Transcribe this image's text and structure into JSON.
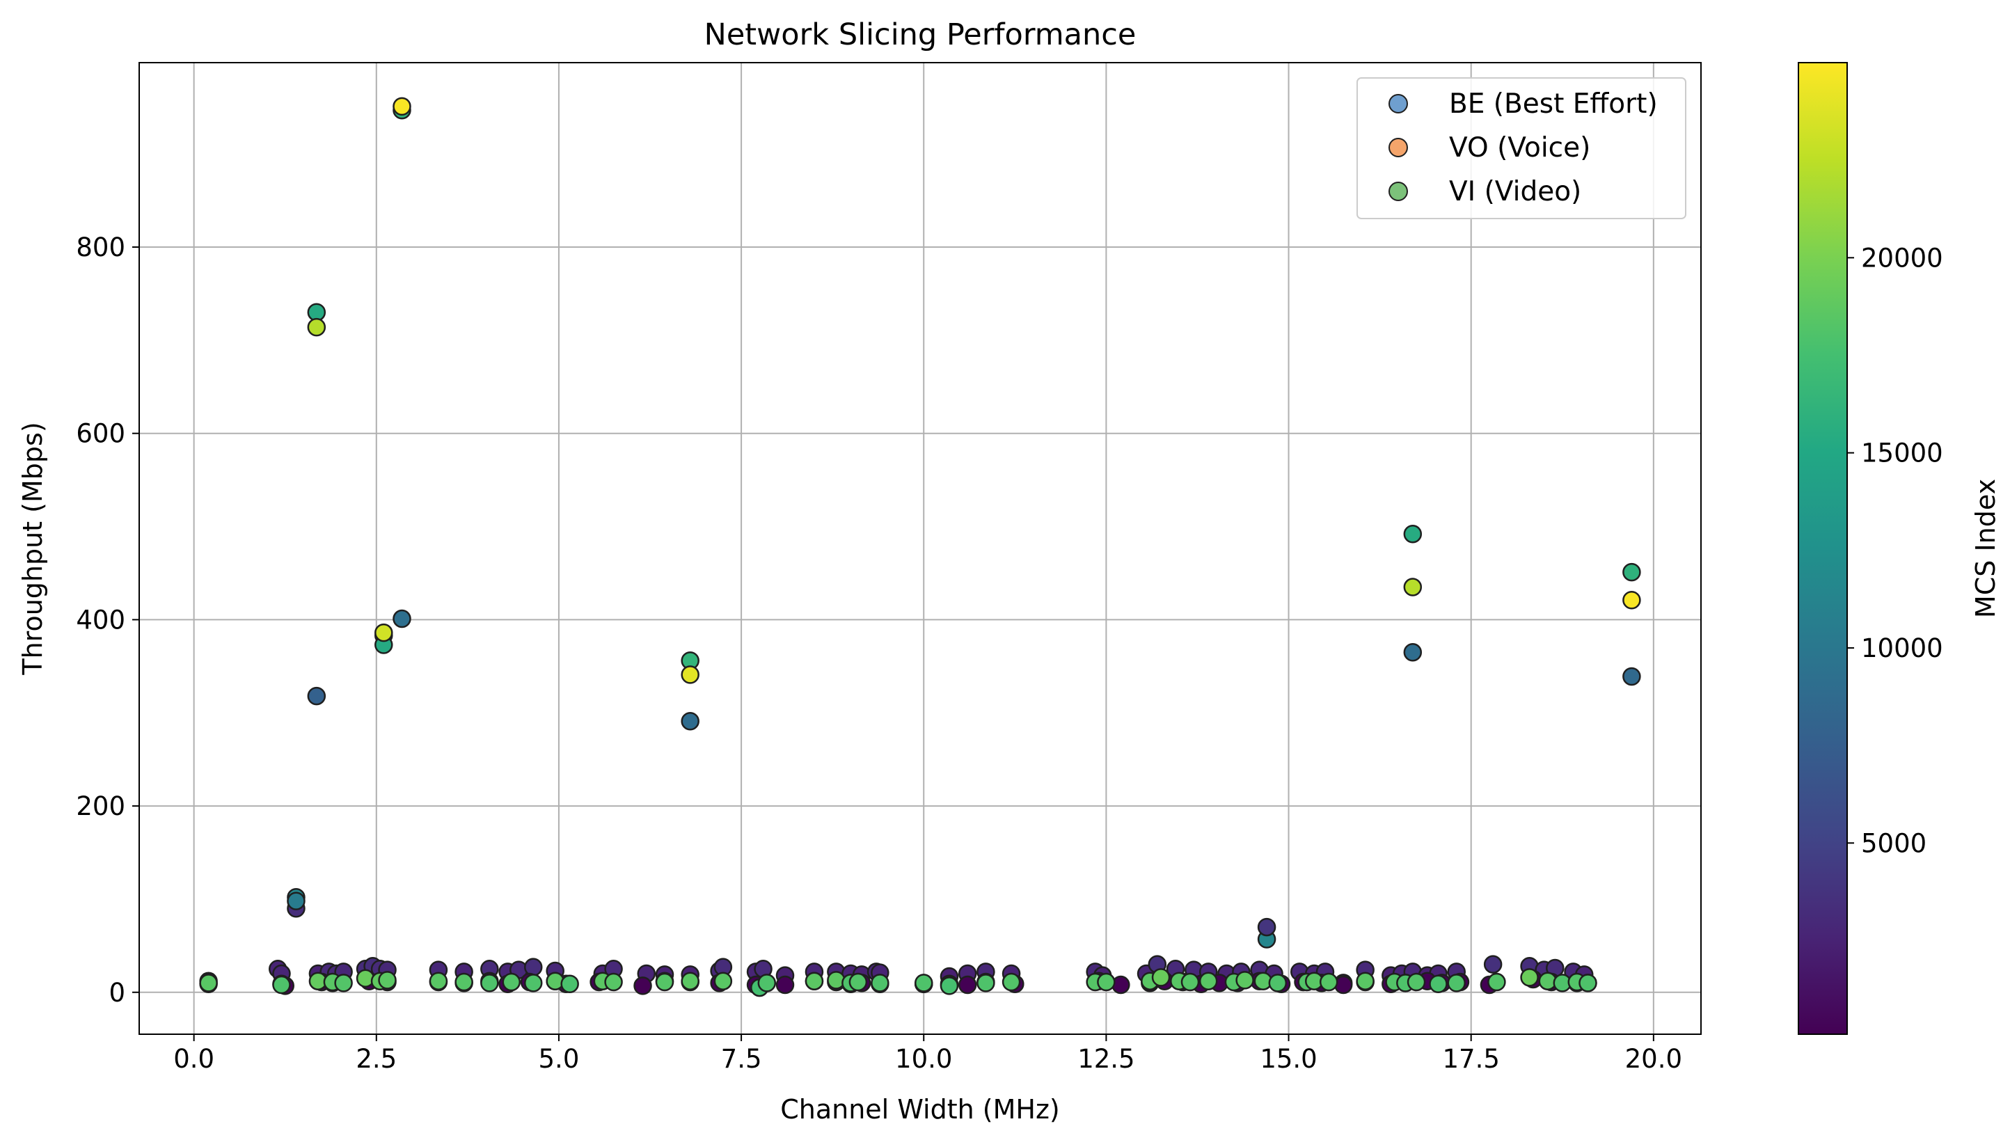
{
  "chart_data": {
    "type": "scatter",
    "title": "Network Slicing Performance",
    "xlabel": "Channel Width (MHz)",
    "ylabel": "Throughput (Mbps)",
    "xlim": [
      -0.75,
      20.65
    ],
    "ylim": [
      -45,
      998
    ],
    "xticks": [
      0.0,
      2.5,
      5.0,
      7.5,
      10.0,
      12.5,
      15.0,
      17.5,
      20.0
    ],
    "xtick_labels": [
      "0.0",
      "2.5",
      "5.0",
      "7.5",
      "10.0",
      "12.5",
      "15.0",
      "17.5",
      "20.0"
    ],
    "yticks": [
      0,
      200,
      400,
      600,
      800
    ],
    "ytick_labels": [
      "0",
      "200",
      "400",
      "600",
      "800"
    ],
    "grid": true,
    "legend_position": "top-right",
    "colorbar": {
      "label": "MCS Index",
      "colormap": "viridis",
      "range": [
        100,
        25000
      ],
      "ticks": [
        5000,
        10000,
        15000,
        20000
      ],
      "tick_labels": [
        "5000",
        "10000",
        "15000",
        "20000"
      ]
    },
    "colors": {
      "edge": "#1f1f1f"
    },
    "series": [
      {
        "name": "BE (Best Effort)",
        "legend_color": "#6f9fcf",
        "x": [
          0.2,
          1.15,
          1.2,
          1.4,
          1.7,
          1.85,
          1.95,
          2.05,
          2.35,
          2.45,
          2.55,
          2.65,
          3.35,
          3.7,
          4.05,
          4.3,
          4.45,
          4.65,
          4.95,
          5.6,
          5.75,
          6.2,
          6.45,
          6.8,
          7.2,
          7.25,
          7.7,
          7.8,
          8.1,
          8.5,
          8.8,
          9.0,
          9.15,
          9.35,
          9.4,
          10.0,
          10.35,
          10.6,
          10.85,
          11.2,
          12.35,
          12.45,
          13.05,
          13.2,
          13.45,
          13.7,
          13.9,
          14.15,
          14.35,
          14.6,
          14.8,
          15.15,
          15.35,
          15.5,
          15.75,
          16.05,
          16.4,
          16.55,
          16.7,
          16.9,
          17.05,
          17.3,
          17.8,
          18.3,
          18.5,
          18.65,
          18.9,
          19.05,
          1.4,
          1.68,
          2.6,
          2.85,
          6.8,
          14.7,
          16.7,
          19.7,
          1.68,
          2.6,
          2.85,
          6.8,
          16.7,
          19.7,
          14.7,
          1.4
        ],
        "y": [
          12,
          25,
          20,
          90,
          20,
          22,
          20,
          22,
          25,
          28,
          25,
          24,
          24,
          22,
          25,
          22,
          24,
          27,
          23,
          20,
          25,
          20,
          19,
          19,
          23,
          27,
          22,
          25,
          18,
          22,
          22,
          20,
          19,
          22,
          21,
          9,
          17,
          20,
          22,
          20,
          22,
          18,
          20,
          30,
          25,
          24,
          22,
          20,
          22,
          24,
          20,
          22,
          20,
          22,
          10,
          24,
          18,
          20,
          22,
          18,
          20,
          22,
          30,
          28,
          24,
          26,
          22,
          19,
          102,
          318,
          383,
          401,
          291,
          57,
          365,
          339,
          730,
          373,
          947,
          356,
          492,
          451,
          70,
          98
        ],
        "c": [
          1900,
          2600,
          2700,
          3300,
          2400,
          3000,
          2900,
          2800,
          3200,
          3400,
          3100,
          2900,
          2800,
          2600,
          3100,
          2700,
          3000,
          3300,
          2800,
          2500,
          3000,
          2600,
          2400,
          2400,
          2800,
          3200,
          2700,
          3100,
          2300,
          2700,
          2700,
          2600,
          2400,
          2700,
          2600,
          1700,
          2300,
          2500,
          2800,
          2500,
          2800,
          2300,
          2600,
          3500,
          3000,
          3000,
          2800,
          2600,
          2800,
          3000,
          2600,
          2800,
          2600,
          2800,
          1600,
          3000,
          2400,
          2600,
          2800,
          2300,
          2600,
          2800,
          3500,
          3400,
          3000,
          3200,
          2800,
          2500,
          11500,
          7800,
          20500,
          9200,
          8900,
          11500,
          9000,
          8600,
          15300,
          15300,
          16200,
          16300,
          15400,
          16000,
          3900,
          10500
        ]
      },
      {
        "name": "VO (Voice)",
        "legend_color": "#f5a56b",
        "x": [
          0.2,
          1.2,
          1.25,
          1.75,
          1.9,
          2.4,
          2.65,
          3.35,
          3.7,
          4.05,
          4.3,
          4.6,
          4.95,
          5.1,
          5.55,
          6.15,
          6.45,
          6.8,
          7.2,
          7.7,
          8.1,
          8.5,
          8.8,
          9.0,
          9.15,
          9.4,
          10.0,
          10.35,
          10.6,
          10.85,
          11.25,
          12.4,
          12.7,
          13.1,
          13.3,
          13.55,
          13.8,
          14.05,
          14.3,
          14.6,
          14.9,
          15.2,
          15.45,
          15.75,
          16.05,
          16.4,
          16.6,
          16.9,
          17.1,
          17.35,
          17.75,
          18.35,
          18.6,
          18.95,
          19.1
        ],
        "y": [
          9,
          9,
          7,
          11,
          10,
          12,
          11,
          11,
          10,
          12,
          9,
          11,
          12,
          9,
          11,
          7,
          12,
          11,
          10,
          8,
          8,
          12,
          11,
          9,
          10,
          9,
          9,
          9,
          8,
          11,
          9,
          12,
          8,
          10,
          12,
          11,
          9,
          10,
          10,
          12,
          9,
          11,
          10,
          8,
          11,
          9,
          10,
          12,
          10,
          11,
          8,
          14,
          11,
          10,
          10
        ],
        "c": [
          10,
          20,
          10,
          30,
          20,
          40,
          30,
          30,
          20,
          40,
          10,
          30,
          40,
          10,
          30,
          10,
          40,
          30,
          20,
          10,
          10,
          40,
          30,
          10,
          20,
          10,
          10,
          10,
          10,
          30,
          10,
          40,
          10,
          20,
          40,
          30,
          10,
          20,
          20,
          40,
          10,
          30,
          20,
          10,
          30,
          10,
          20,
          40,
          20,
          30,
          10,
          50,
          30,
          20,
          20
        ]
      },
      {
        "name": "VI (Video)",
        "legend_color": "#7cc27a",
        "x": [
          0.2,
          1.2,
          1.7,
          1.9,
          2.05,
          2.35,
          2.55,
          2.65,
          3.35,
          3.7,
          4.05,
          4.35,
          4.65,
          4.95,
          5.15,
          5.6,
          5.75,
          6.45,
          6.8,
          7.25,
          7.75,
          7.85,
          8.5,
          8.8,
          9.0,
          9.1,
          9.4,
          10.0,
          10.35,
          10.85,
          11.2,
          12.35,
          12.5,
          13.1,
          13.25,
          13.5,
          13.65,
          13.9,
          14.25,
          14.4,
          14.65,
          14.85,
          15.25,
          15.35,
          15.55,
          16.05,
          16.45,
          16.6,
          16.75,
          17.05,
          17.3,
          17.85,
          18.3,
          18.55,
          18.75,
          18.95,
          19.1,
          1.68,
          2.6,
          2.85,
          6.8,
          16.7,
          19.7
        ],
        "y": [
          10,
          8,
          12,
          11,
          10,
          15,
          12,
          13,
          12,
          11,
          10,
          11,
          10,
          12,
          9,
          12,
          11,
          11,
          12,
          12,
          5,
          10,
          12,
          13,
          10,
          11,
          10,
          10,
          7,
          10,
          11,
          11,
          11,
          12,
          16,
          12,
          11,
          12,
          11,
          13,
          12,
          10,
          11,
          12,
          11,
          12,
          11,
          10,
          11,
          9,
          10,
          11,
          16,
          12,
          10,
          11,
          10,
          714,
          386,
          951,
          341,
          435,
          421
        ],
        "c": [
          18500,
          18000,
          19000,
          18500,
          18200,
          19200,
          18800,
          18600,
          18500,
          18300,
          18000,
          18200,
          18000,
          18600,
          17800,
          18600,
          18400,
          18300,
          18600,
          18500,
          17500,
          18000,
          18600,
          18700,
          18000,
          18200,
          18000,
          18000,
          17600,
          18000,
          18200,
          18300,
          18300,
          18500,
          19200,
          18500,
          18300,
          18500,
          18300,
          18700,
          18500,
          18000,
          18200,
          18500,
          18300,
          18500,
          18200,
          18000,
          18200,
          17800,
          18000,
          18200,
          19300,
          18500,
          18000,
          18200,
          18000,
          22200,
          23300,
          24800,
          24000,
          22300,
          24800
        ]
      }
    ]
  }
}
